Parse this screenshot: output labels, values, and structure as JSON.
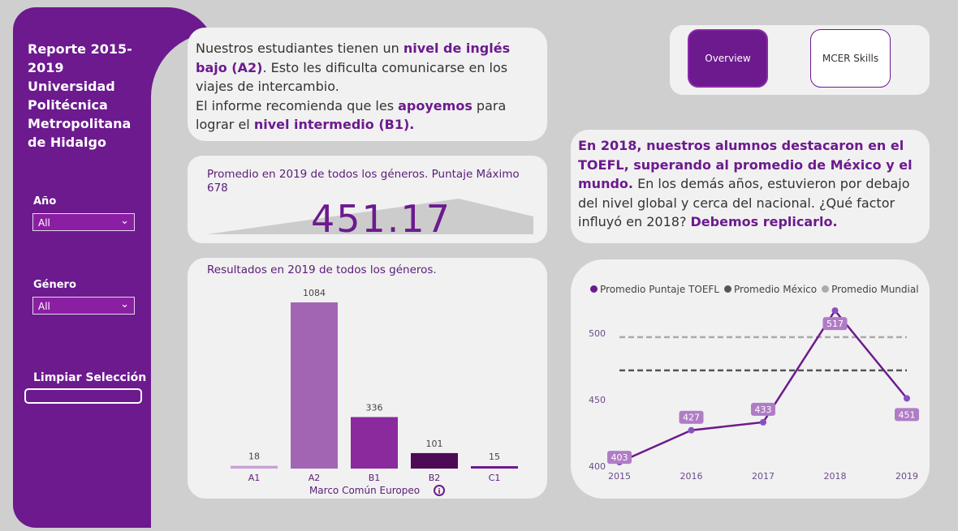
{
  "sidebar": {
    "title": "Reporte 2015-2019\nUniversidad\nPolitécnica\nMetropolitana\nde Hidalgo",
    "year_label": "Año",
    "year_value": "All",
    "gender_label": "Género",
    "gender_value": "All",
    "clear_label": "Limpiar Selección"
  },
  "nav": {
    "overview": "Overview",
    "mcer": "MCER Skills"
  },
  "info": {
    "p1_a": "Nuestros estudiantes tienen un ",
    "p1_b": "nivel de inglés bajo (A2)",
    "p1_c": ". Esto les dificulta comunicarse en los viajes de intercambio.",
    "p2_a": "El informe recomienda que les ",
    "p2_b": "apoyemos",
    "p2_c": " para lograr el ",
    "p2_d": "nivel intermedio (B1)."
  },
  "kpi": {
    "label": "Promedio en 2019 de todos los géneros. Puntaje Máximo 678",
    "value": "451.17"
  },
  "highlight": {
    "a": "En 2018, nuestros alumnos destacaron en el TOEFL, superando al promedio de México y el mundo.",
    "b": " En los demás años, estuvieron por debajo del nivel global y cerca del nacional. ¿Qué factor influyó en 2018? ",
    "c": "Debemos replicarlo."
  },
  "colors": {
    "primary": "#6c1a8e",
    "bar_light": "#c28fd0",
    "bar_mid": "#a265b4",
    "bar_dark": "#8a2a9c",
    "bar_darkest": "#4d0a55"
  },
  "chart_data": [
    {
      "type": "bar",
      "title": "Resultados en 2019 de todos los géneros.",
      "xlabel": "Marco Común Europeo",
      "categories": [
        "A1",
        "A2",
        "B1",
        "B2",
        "C1"
      ],
      "values": [
        18,
        1084,
        336,
        101,
        15
      ],
      "colors": [
        "#c9a0d8",
        "#a265b4",
        "#8a2a9c",
        "#4d0a55",
        "#6c1a8e"
      ]
    },
    {
      "type": "line",
      "x": [
        2015,
        2016,
        2017,
        2018,
        2019
      ],
      "ylim": [
        400,
        525
      ],
      "yticks": [
        400,
        450,
        500
      ],
      "series": [
        {
          "name": "Promedio Puntaje TOEFL",
          "values": [
            403,
            427,
            433,
            517,
            451
          ],
          "color": "#6c1a8e"
        },
        {
          "name": "Promedio México",
          "values": [
            472,
            472,
            472,
            472,
            472
          ],
          "color": "#555555",
          "dashed": true
        },
        {
          "name": "Promedio Mundial",
          "values": [
            497,
            497,
            497,
            497,
            497
          ],
          "color": "#aaaaaa",
          "dashed": true
        }
      ]
    }
  ]
}
